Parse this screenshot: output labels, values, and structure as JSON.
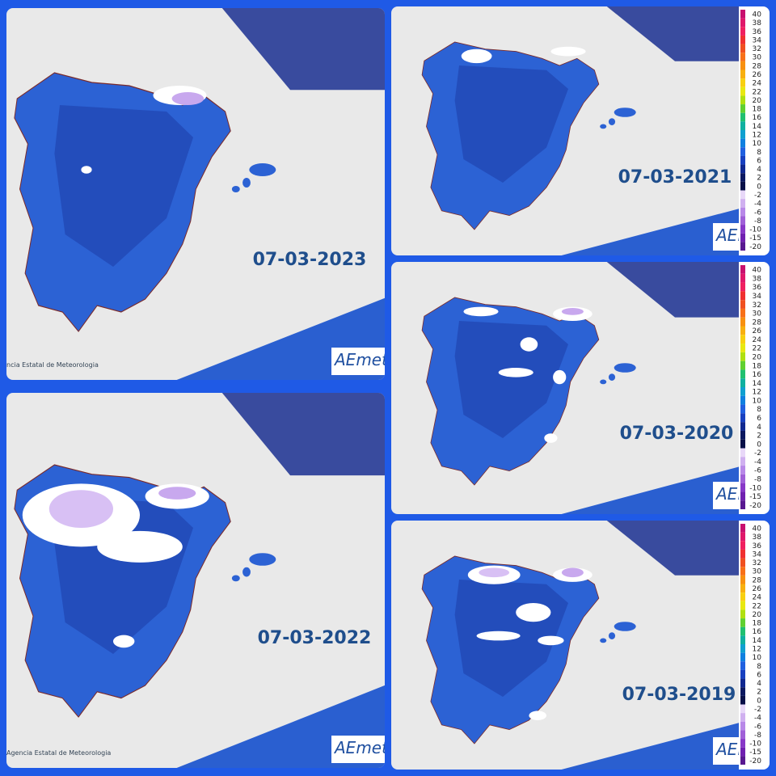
{
  "panels": [
    {
      "date": "07-03-2023",
      "logo": "AEmet",
      "agency": "ncia Estatal de Meteorologia"
    },
    {
      "date": "07-03-2022",
      "logo": "AEmet",
      "agency": "Agencia Estatal de Meteorologia"
    },
    {
      "date": "07-03-2021",
      "logo": "AEmet"
    },
    {
      "date": "07-03-2020",
      "logo": "AEmet"
    },
    {
      "date": "07-03-2019",
      "logo": "AEmet"
    }
  ],
  "scale": {
    "labels": [
      "40",
      "38",
      "36",
      "34",
      "32",
      "30",
      "28",
      "26",
      "24",
      "22",
      "20",
      "18",
      "16",
      "14",
      "12",
      "10",
      "8",
      "6",
      "4",
      "2",
      "0",
      "-2",
      "-4",
      "-6",
      "-8",
      "-10",
      "-15",
      "-20"
    ],
    "colors": [
      "#c8106e",
      "#e0186a",
      "#f02060",
      "#f03030",
      "#f05020",
      "#f87018",
      "#f89010",
      "#f8b010",
      "#f8d010",
      "#e8e810",
      "#b0e010",
      "#60d030",
      "#20c070",
      "#10b0a0",
      "#10a0d0",
      "#1080e0",
      "#2060e0",
      "#1840c0",
      "#102890",
      "#0c1860",
      "#081048",
      "#e8d8f8",
      "#d0b0f0",
      "#b888e8",
      "#a060d8",
      "#8838c8",
      "#7020b0",
      "#581890"
    ]
  }
}
